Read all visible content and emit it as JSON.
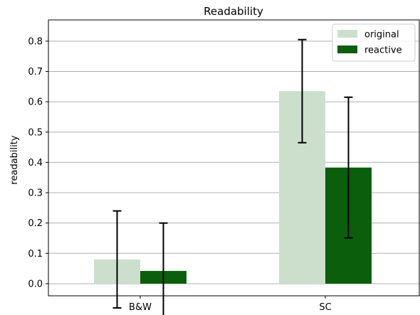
{
  "chart_data": {
    "type": "bar",
    "title": "Readability",
    "xlabel": "",
    "ylabel": "readability",
    "categories": [
      "B&W",
      "SC"
    ],
    "ylim": [
      -0.04,
      0.87
    ],
    "yticks": [
      "0.0",
      "0.1",
      "0.2",
      "0.3",
      "0.4",
      "0.5",
      "0.6",
      "0.7",
      "0.8"
    ],
    "grid": "horizontal",
    "legend_position": "top-right",
    "series": [
      {
        "name": "original",
        "color": "#ccdfcc",
        "values": [
          0.08,
          0.635
        ],
        "error": [
          0.16,
          0.17
        ]
      },
      {
        "name": "reactive",
        "color": "#0b5e0b",
        "values": [
          0.042,
          0.383
        ],
        "error": [
          0.158,
          0.232
        ]
      }
    ]
  }
}
